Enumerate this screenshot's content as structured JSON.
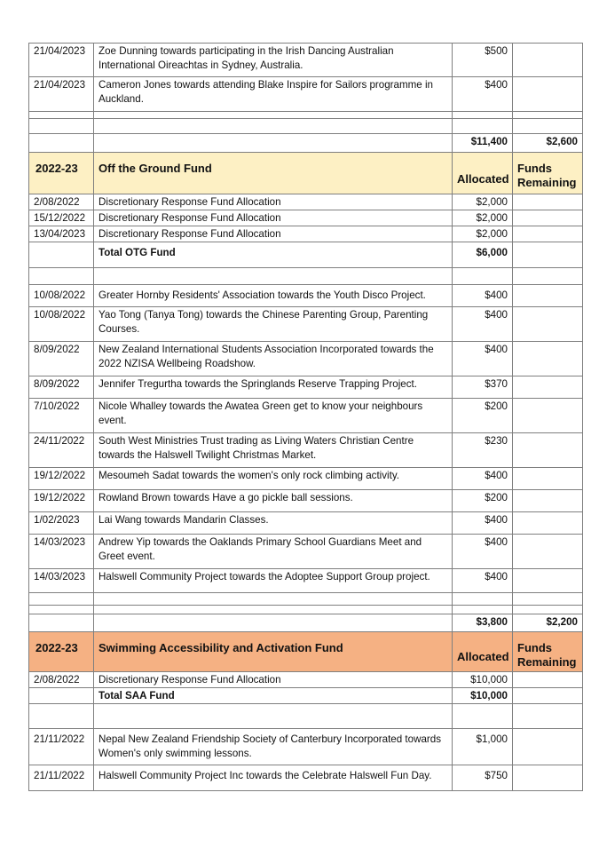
{
  "colors": {
    "otg_header": "#fdf0c4",
    "saa_header": "#f5b183",
    "border": "#7f7f7f"
  },
  "rows": [
    {
      "type": "item",
      "h": 38,
      "date": "21/04/2023",
      "desc": "Zoe Dunning towards participating in the Irish Dancing Australian International Oireachtas in Sydney, Australia.",
      "alloc": "$500",
      "rem": ""
    },
    {
      "type": "item",
      "h": 39,
      "date": "21/04/2023",
      "desc": "Cameron Jones towards attending Blake Inspire for Sailors programme in Auckland.",
      "alloc": "$400",
      "rem": ""
    },
    {
      "type": "empty",
      "h": 8
    },
    {
      "type": "empty",
      "h": 17
    },
    {
      "type": "total",
      "h": 21,
      "date": "",
      "desc": "",
      "alloc": "$11,400",
      "rem": "$2,600"
    },
    {
      "type": "header",
      "color": "yellow",
      "h": 47,
      "date": "2022-23",
      "desc": "Off the Ground Fund",
      "alloc": "Allocated",
      "rem": "Funds Remaining"
    },
    {
      "type": "item",
      "h": 16,
      "date": "2/08/2022",
      "desc": "Discretionary Response Fund Allocation",
      "alloc": "$2,000",
      "rem": ""
    },
    {
      "type": "item",
      "h": 17,
      "date": "15/12/2022",
      "desc": "Discretionary Response Fund Allocation",
      "alloc": "$2,000",
      "rem": ""
    },
    {
      "type": "item",
      "h": 17,
      "date": "13/04/2023",
      "desc": "Discretionary Response Fund Allocation",
      "alloc": "$2,000",
      "rem": ""
    },
    {
      "type": "total",
      "h": 29,
      "date": "",
      "desc": "Total OTG Fund",
      "alloc": "$6,000",
      "rem": "",
      "pad": true
    },
    {
      "type": "empty",
      "h": 19
    },
    {
      "type": "item",
      "h": 25,
      "date": "10/08/2022",
      "desc": "Greater Hornby Residents' Association towards the Youth Disco Project.",
      "alloc": "$400",
      "rem": "",
      "pad": true
    },
    {
      "type": "item",
      "h": 39,
      "date": "10/08/2022",
      "desc": "Yao Tong (Tanya Tong) towards the Chinese Parenting Group, Parenting Courses.",
      "alloc": "$400",
      "rem": ""
    },
    {
      "type": "item",
      "h": 39,
      "date": "8/09/2022",
      "desc": "New Zealand International Students Association Incorporated towards the 2022 NZISA Wellbeing Roadshow.",
      "alloc": "$400",
      "rem": ""
    },
    {
      "type": "item",
      "h": 25,
      "date": "8/09/2022",
      "desc": "Jennifer Tregurtha towards the Springlands Reserve Trapping Project.",
      "alloc": "$370",
      "rem": ""
    },
    {
      "type": "item",
      "h": 39,
      "date": "7/10/2022",
      "desc": "Nicole Whalley towards the Awatea Green get to know your neighbours event.",
      "alloc": "$200",
      "rem": ""
    },
    {
      "type": "item",
      "h": 39,
      "date": "24/11/2022",
      "desc": "South West Ministries Trust trading as Living Waters Christian Centre towards the Halswell Twilight Christmas Market.",
      "alloc": "$230",
      "rem": ""
    },
    {
      "type": "item",
      "h": 25,
      "date": "19/12/2022",
      "desc": "Mesoumeh Sadat towards the women's only rock climbing activity.",
      "alloc": "$400",
      "rem": ""
    },
    {
      "type": "item",
      "h": 25,
      "date": "19/12/2022",
      "desc": "Rowland Brown towards Have a go pickle ball sessions.",
      "alloc": "$200",
      "rem": ""
    },
    {
      "type": "item",
      "h": 25,
      "date": "1/02/2023",
      "desc": "Lai Wang towards Mandarin Classes.",
      "alloc": "$400",
      "rem": ""
    },
    {
      "type": "item",
      "h": 39,
      "date": "14/03/2023",
      "desc": "Andrew Yip towards the Oaklands Primary School Guardians Meet and Greet event.",
      "alloc": "$400",
      "rem": ""
    },
    {
      "type": "item",
      "h": 27,
      "date": "14/03/2023",
      "desc": "Halswell Community Project towards the Adoptee Support Group project.",
      "alloc": "$400",
      "rem": ""
    },
    {
      "type": "empty",
      "h": 14
    },
    {
      "type": "empty",
      "h": 10
    },
    {
      "type": "total",
      "h": 20,
      "date": "",
      "desc": "",
      "alloc": "$3,800",
      "rem": "$2,200"
    },
    {
      "type": "header",
      "color": "orange",
      "h": 45,
      "date": "2022-23",
      "desc": "Swimming Accessibility and Activation Fund",
      "alloc": "Allocated",
      "rem": "Funds Remaining"
    },
    {
      "type": "item",
      "h": 17,
      "date": "2/08/2022",
      "desc": "Discretionary Response Fund Allocation",
      "alloc": "$10,000",
      "rem": ""
    },
    {
      "type": "total",
      "h": 18,
      "date": "",
      "desc": "Total SAA Fund",
      "alloc": "$10,000",
      "rem": ""
    },
    {
      "type": "empty",
      "h": 28
    },
    {
      "type": "item",
      "h": 41,
      "date": "21/11/2022",
      "desc": "Nepal New Zealand Friendship Society of Canterbury Incorporated towards Women's only swimming lessons.",
      "alloc": "$1,000",
      "rem": "",
      "pad": true
    },
    {
      "type": "item",
      "h": 29,
      "date": "21/11/2022",
      "desc": "Halswell Community Project Inc towards the Celebrate Halswell Fun Day.",
      "alloc": "$750",
      "rem": "",
      "pad": true
    }
  ]
}
